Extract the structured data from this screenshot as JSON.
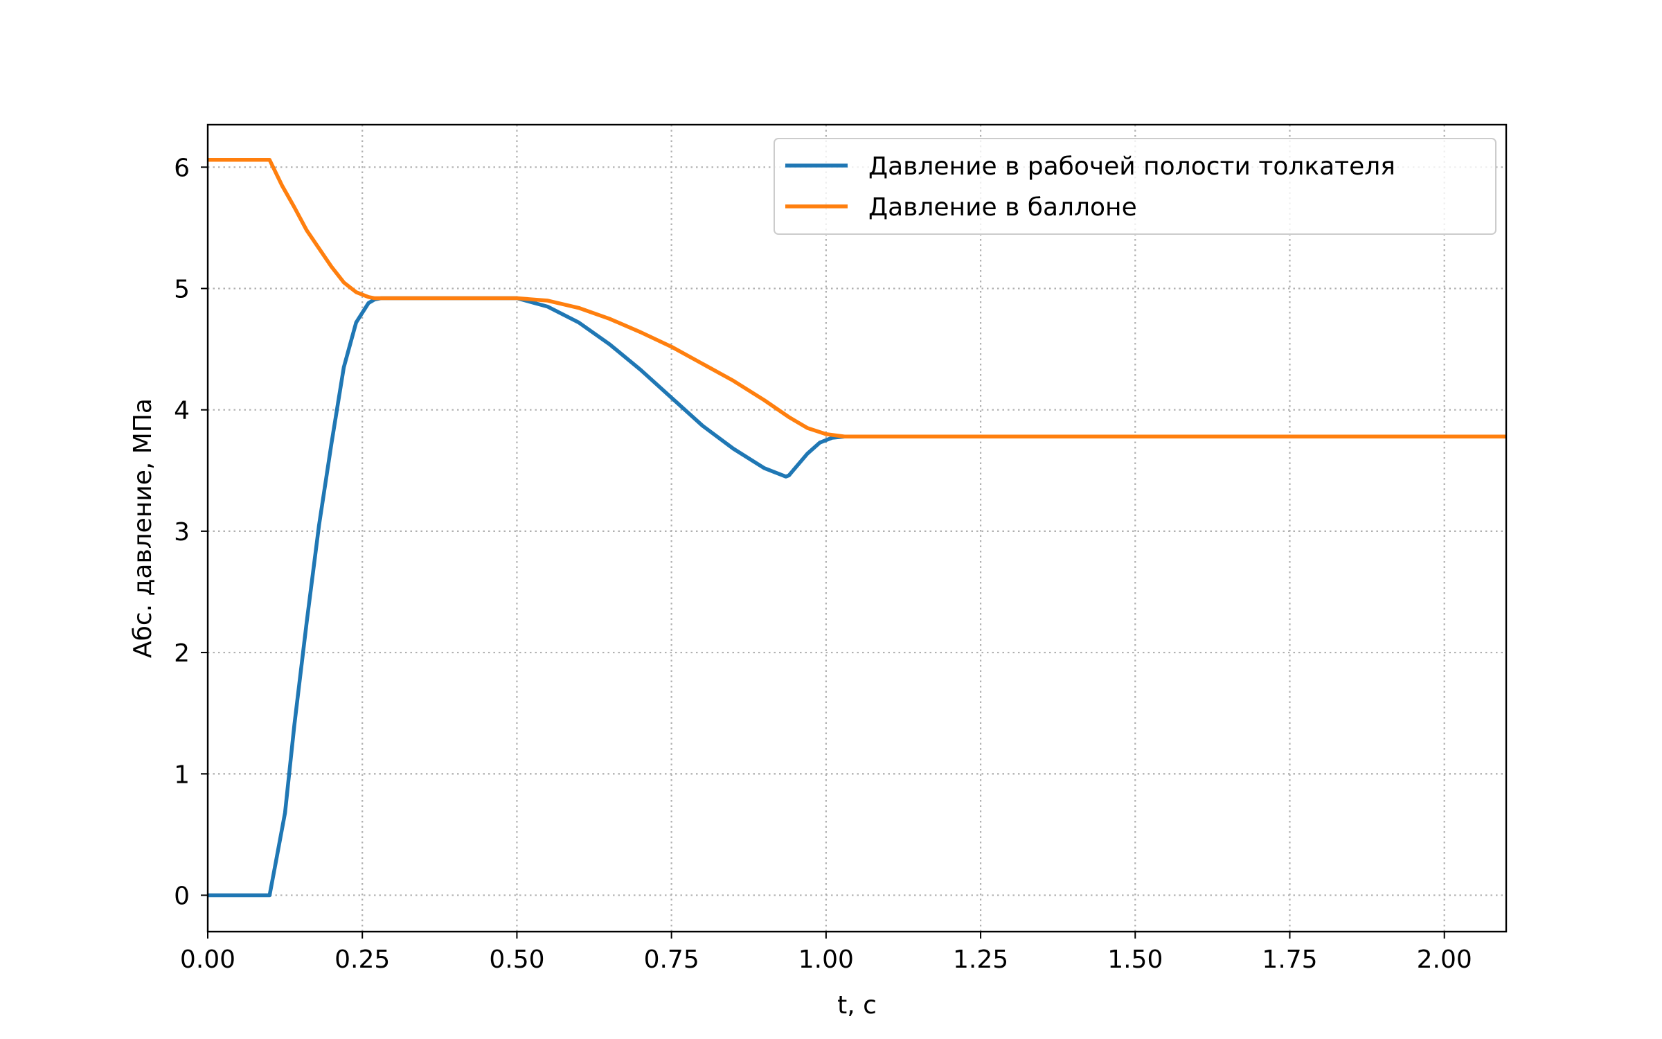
{
  "chart_data": {
    "type": "line",
    "xlabel": "t, с",
    "ylabel": "Абс. давление, МПа",
    "xlim": [
      0.0,
      2.1
    ],
    "ylim": [
      -0.3,
      6.35
    ],
    "xticks": [
      0.0,
      0.25,
      0.5,
      0.75,
      1.0,
      1.25,
      1.5,
      1.75,
      2.0
    ],
    "xtick_labels": [
      "0.00",
      "0.25",
      "0.50",
      "0.75",
      "1.00",
      "1.25",
      "1.50",
      "1.75",
      "2.00"
    ],
    "yticks": [
      0,
      1,
      2,
      3,
      4,
      5,
      6
    ],
    "ytick_labels": [
      "0",
      "1",
      "2",
      "3",
      "4",
      "5",
      "6"
    ],
    "grid": true,
    "legend_position": "top-right",
    "series": [
      {
        "name": "Давление в рабочей полости толкателя",
        "color": "#1f77b4",
        "x": [
          0.0,
          0.05,
          0.1,
          0.11,
          0.125,
          0.14,
          0.16,
          0.18,
          0.2,
          0.22,
          0.24,
          0.26,
          0.27,
          0.28,
          0.3,
          0.4,
          0.5,
          0.55,
          0.6,
          0.65,
          0.7,
          0.75,
          0.8,
          0.85,
          0.9,
          0.935,
          0.94,
          0.95,
          0.97,
          0.99,
          1.01,
          1.03,
          1.1,
          1.5,
          2.1
        ],
        "y": [
          0.0,
          0.0,
          0.0,
          0.27,
          0.68,
          1.4,
          2.25,
          3.05,
          3.72,
          4.35,
          4.72,
          4.88,
          4.91,
          4.92,
          4.92,
          4.92,
          4.92,
          4.85,
          4.72,
          4.54,
          4.33,
          4.1,
          3.87,
          3.68,
          3.52,
          3.45,
          3.46,
          3.52,
          3.64,
          3.73,
          3.77,
          3.78,
          3.78,
          3.78,
          3.78
        ]
      },
      {
        "name": "Давление в баллоне",
        "color": "#ff7f0e",
        "x": [
          0.0,
          0.05,
          0.1,
          0.12,
          0.14,
          0.16,
          0.18,
          0.2,
          0.22,
          0.24,
          0.26,
          0.27,
          0.28,
          0.3,
          0.4,
          0.5,
          0.55,
          0.6,
          0.65,
          0.7,
          0.75,
          0.8,
          0.85,
          0.9,
          0.94,
          0.97,
          1.0,
          1.03,
          1.1,
          1.5,
          2.1
        ],
        "y": [
          6.06,
          6.06,
          6.06,
          5.85,
          5.67,
          5.48,
          5.33,
          5.18,
          5.05,
          4.97,
          4.93,
          4.92,
          4.92,
          4.92,
          4.92,
          4.92,
          4.9,
          4.84,
          4.75,
          4.64,
          4.52,
          4.38,
          4.24,
          4.08,
          3.94,
          3.85,
          3.8,
          3.78,
          3.78,
          3.78,
          3.78
        ]
      }
    ]
  }
}
